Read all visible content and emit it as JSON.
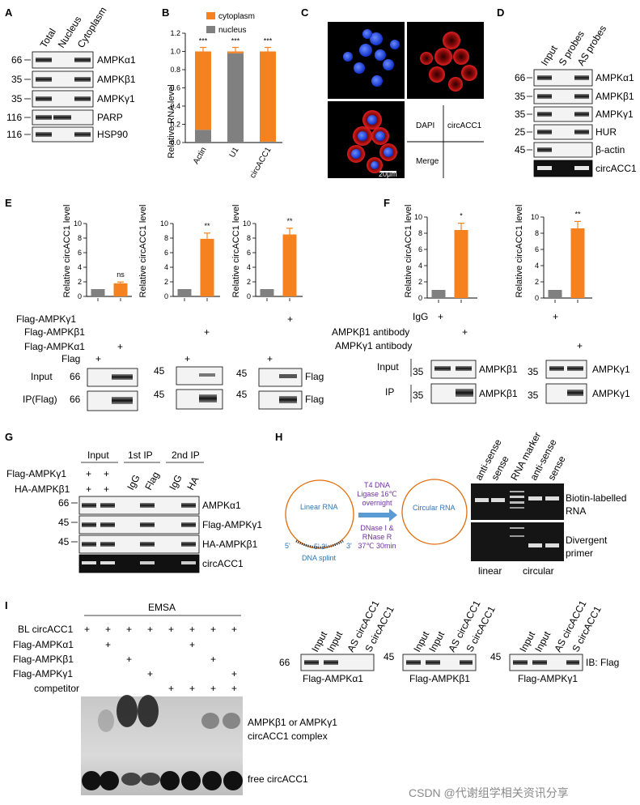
{
  "watermark": "CSDN @代谢组学相关资讯分享",
  "panelA": {
    "letter": "A",
    "columns": [
      "Total",
      "Nucleus",
      "Cytoplasm"
    ],
    "mw": [
      "66",
      "35",
      "35",
      "116",
      "116"
    ],
    "proteins": [
      "AMPKα1",
      "AMPKβ1",
      "AMPKγ1",
      "PARP",
      "HSP90"
    ]
  },
  "panelB": {
    "letter": "B",
    "chart_data": {
      "type": "bar",
      "stacked": true,
      "categories": [
        "Actin",
        "U1",
        "circACC1"
      ],
      "series": [
        {
          "name": "cytoplasm",
          "color": "#f5821f",
          "values": [
            0.86,
            0.02,
            0.99
          ]
        },
        {
          "name": "nucleus",
          "color": "#808080",
          "values": [
            0.14,
            0.98,
            0.01
          ]
        }
      ],
      "ylabel": "Relative RNA level",
      "ylim": [
        0,
        1.2
      ],
      "yticks": [
        "0.0",
        "0.2",
        "0.4",
        "0.6",
        "0.8",
        "1.0",
        "1.2"
      ],
      "significance": [
        "***",
        "***",
        "***"
      ],
      "legend_position": "top"
    }
  },
  "panelC": {
    "letter": "C",
    "labels": [
      "DAPI",
      "circACC1",
      "Merge"
    ],
    "scalebar": "20μm"
  },
  "panelD": {
    "letter": "D",
    "columns": [
      "Input",
      "S probes",
      "AS probes"
    ],
    "mw": [
      "66",
      "35",
      "35",
      "25",
      "45"
    ],
    "rows": [
      "AMPKα1",
      "AMPKβ1",
      "AMPKγ1",
      "HUR",
      "β-actin",
      "circACC1"
    ]
  },
  "panelE": {
    "letter": "E",
    "ylabel": "Relative circACC1 level",
    "yticks": [
      "0",
      "2",
      "4",
      "6",
      "8",
      "10"
    ],
    "chart_data": [
      {
        "type": "bar",
        "ylim": [
          0,
          10
        ],
        "categories": [
          "Flag",
          "Flag-AMPKα1"
        ],
        "values": [
          1.0,
          1.8
        ],
        "colors": [
          "#808080",
          "#f5821f"
        ],
        "significance": "ns"
      },
      {
        "type": "bar",
        "ylim": [
          0,
          10
        ],
        "categories": [
          "Flag",
          "Flag-AMPKβ1"
        ],
        "values": [
          1.0,
          7.9
        ],
        "colors": [
          "#808080",
          "#f5821f"
        ],
        "significance": "**"
      },
      {
        "type": "bar",
        "ylim": [
          0,
          10
        ],
        "categories": [
          "Flag",
          "Flag-AMPKγ1"
        ],
        "values": [
          1.0,
          8.5
        ],
        "colors": [
          "#808080",
          "#f5821f"
        ],
        "significance": "**"
      }
    ],
    "conditions": [
      "Flag-AMPKγ1",
      "Flag-AMPKβ1",
      "Flag-AMPKα1",
      "Flag"
    ],
    "blot_rows": [
      "Input",
      "IP(Flag)"
    ],
    "blot_mw": [
      "66",
      "66",
      "45",
      "45",
      "45",
      "45"
    ],
    "blot_label": "Flag"
  },
  "panelF": {
    "letter": "F",
    "ylabel": "Relative circACC1 level",
    "yticks": [
      "0",
      "2",
      "4",
      "6",
      "8",
      "10"
    ],
    "chart_data": [
      {
        "type": "bar",
        "ylim": [
          0,
          10
        ],
        "categories": [
          "IgG",
          "AMPKβ1 antibody"
        ],
        "values": [
          1.0,
          8.4
        ],
        "colors": [
          "#808080",
          "#f5821f"
        ],
        "significance": "*"
      },
      {
        "type": "bar",
        "ylim": [
          0,
          10
        ],
        "categories": [
          "IgG",
          "AMPKγ1 antibody"
        ],
        "values": [
          1.0,
          8.6
        ],
        "colors": [
          "#808080",
          "#f5821f"
        ],
        "significance": "**"
      }
    ],
    "conditions": [
      "IgG",
      "AMPKβ1 antibody",
      "AMPKγ1 antibody"
    ],
    "blot_rows": [
      "Input",
      "IP"
    ],
    "blot_mw": [
      "35",
      "35",
      "35",
      "35"
    ],
    "blot_labels": [
      "AMPKβ1",
      "AMPKβ1",
      "AMPKγ1",
      "AMPKγ1"
    ]
  },
  "panelG": {
    "letter": "G",
    "groups": [
      "Input",
      "1st IP",
      "2nd IP"
    ],
    "columns": [
      "IgG",
      "Flag",
      "IgG",
      "HA"
    ],
    "conditions": [
      "Flag-AMPKγ1",
      "HA-AMPKβ1"
    ],
    "mw": [
      "66",
      "45",
      "45"
    ],
    "rows": [
      "AMPKα1",
      "Flag-AMPKγ1",
      "HA-AMPKβ1",
      "circACC1"
    ]
  },
  "panelH": {
    "letter": "H",
    "linear_label": "Linear RNA",
    "circular_label": "Circular RNA",
    "step1": [
      "T4 DNA",
      "Ligase 16℃",
      "overnight"
    ],
    "step2": [
      "DNase Ⅰ &",
      "RNase R",
      "37℃ 30min"
    ],
    "ends": [
      "5'",
      "5' 3'",
      "3'"
    ],
    "splint": "DNA splint",
    "gel_columns": [
      "anti-sense",
      "sense",
      "RNA marker",
      "anti-sense",
      "sense"
    ],
    "gel_rows": [
      "Biotin-labelled",
      "RNA",
      "Divergent",
      "primer"
    ],
    "gel_groups": [
      "linear",
      "circular"
    ]
  },
  "panelI": {
    "letter": "I",
    "header": "EMSA",
    "conditions": [
      "BL circACC1",
      "Flag-AMPKα1",
      "Flag-AMPKβ1",
      "Flag-AMPKγ1",
      "competitor"
    ],
    "labels": [
      "AMPKβ1 or AMPKγ1",
      "circACC1 complex",
      "free circACC1"
    ],
    "blot_columns": [
      "Input",
      "Input",
      "AS circACC1",
      "S circACC1"
    ],
    "blot_mw": [
      "66",
      "45",
      "45"
    ],
    "blot_names": [
      "Flag-AMPKα1",
      "Flag-AMPKβ1",
      "Flag-AMPKγ1"
    ],
    "ib": "IB: Flag"
  }
}
